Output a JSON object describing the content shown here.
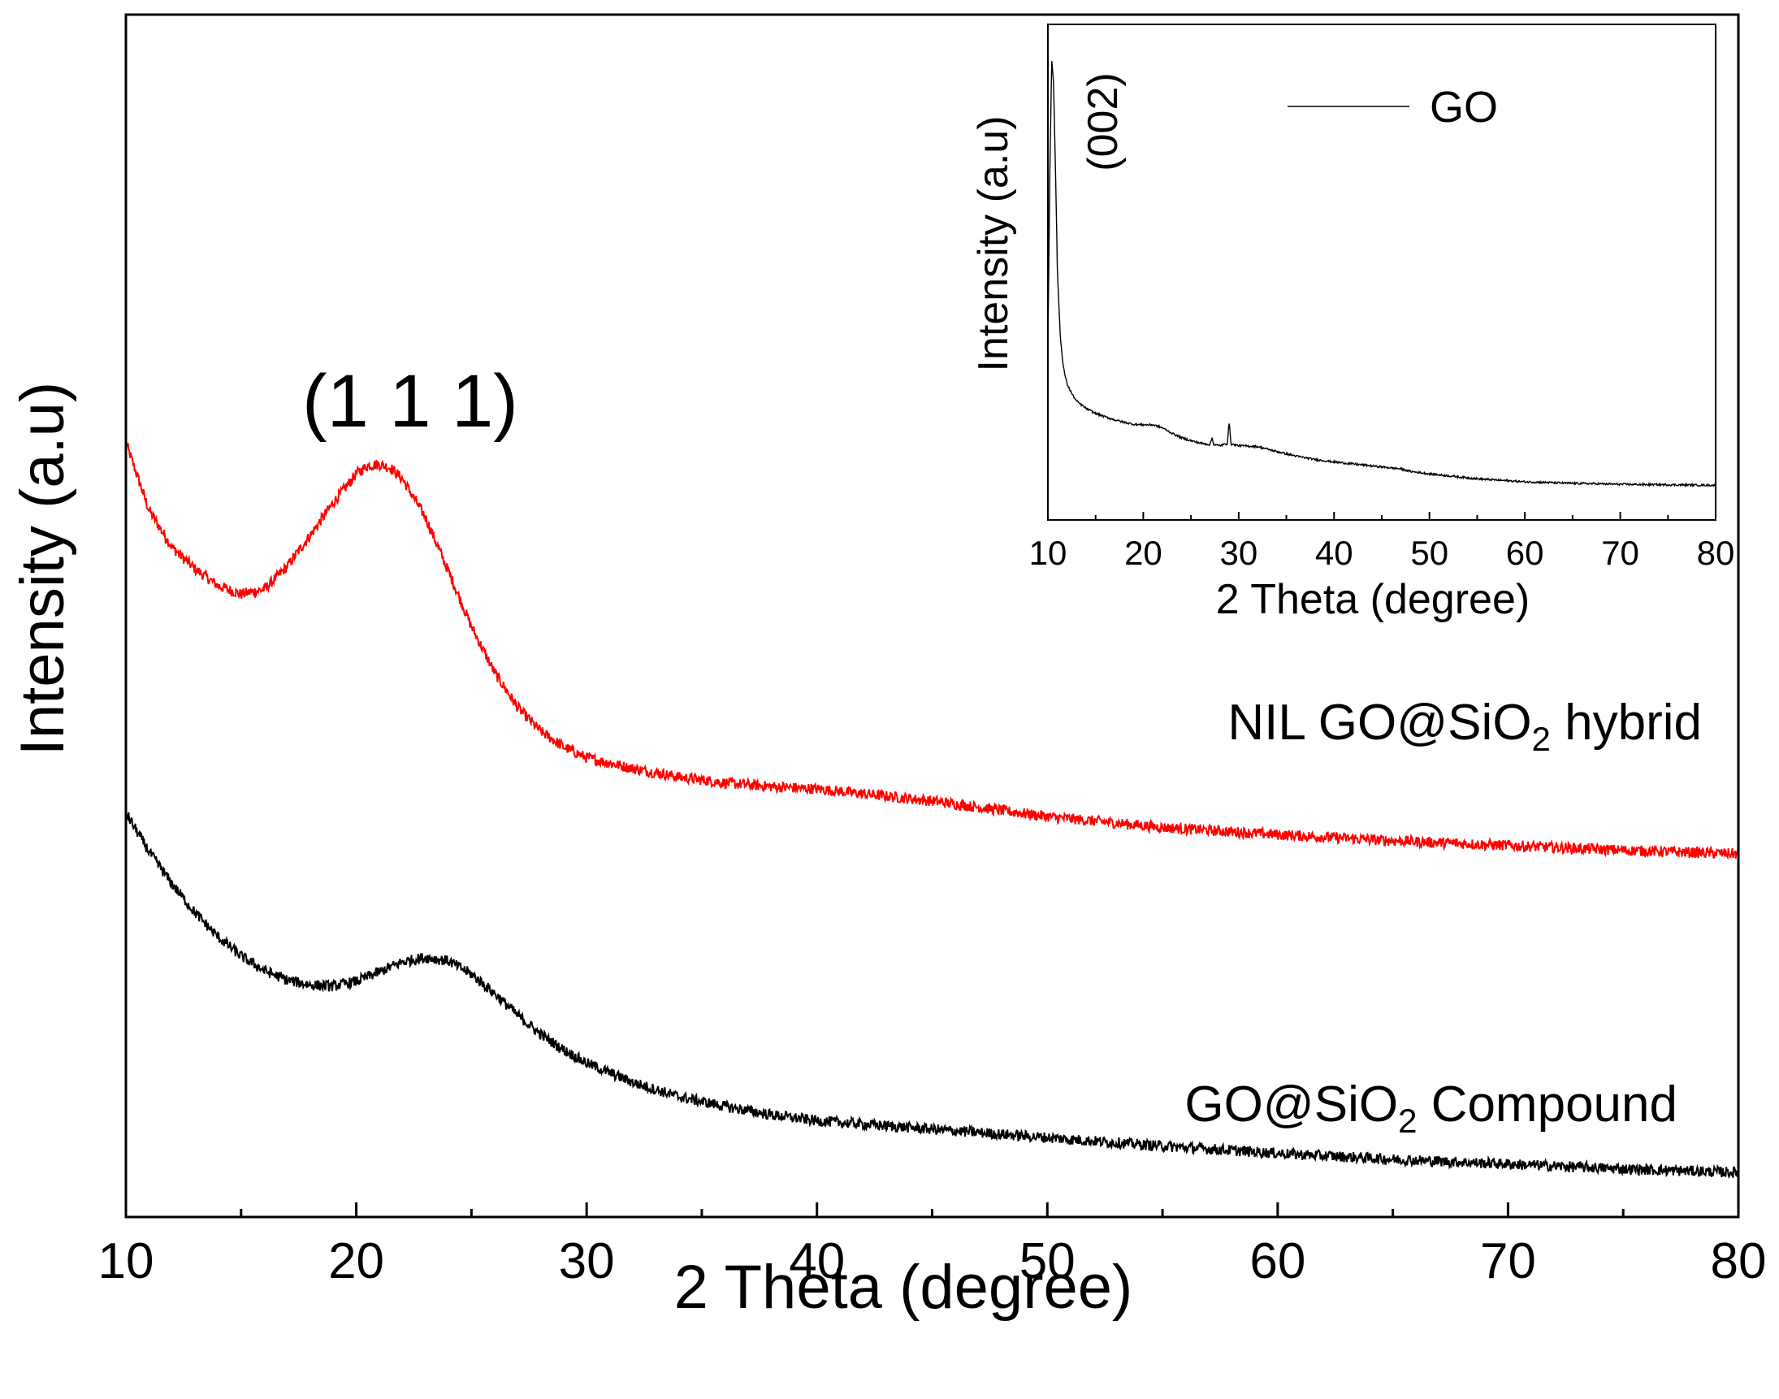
{
  "chart_data": [
    {
      "type": "line",
      "title": "",
      "xlabel": "2 Theta (degree)",
      "ylabel": "Intensity (a.u)",
      "xlim": [
        10,
        80
      ],
      "ylim": [
        0,
        100
      ],
      "y_tick_labels": false,
      "x_ticks": [
        10,
        20,
        30,
        40,
        50,
        60,
        70,
        80
      ],
      "peak_annotation": "(1 1 1)",
      "series": [
        {
          "name": "NIL GO@SiO2 hybrid",
          "label_main": "NIL GO@SiO",
          "label_sub": "2",
          "label_rest": " hybrid",
          "color": "#ff0000",
          "x": [
            10,
            11,
            12,
            13,
            14,
            15,
            16,
            17,
            18,
            19,
            20,
            20.5,
            21,
            21.5,
            22,
            23,
            24,
            25,
            26,
            27,
            28,
            29,
            30,
            32,
            34,
            36,
            38,
            40,
            42,
            45,
            50,
            55,
            60,
            65,
            70,
            75,
            80
          ],
          "y": [
            64.4,
            58.8,
            55.7,
            53.9,
            52.5,
            51.8,
            52.2,
            54.1,
            56.7,
            59.4,
            61.8,
            62.5,
            62.6,
            62.3,
            61.4,
            58.2,
            53.7,
            49.1,
            45.3,
            42.4,
            40.4,
            39.1,
            38.2,
            37.3,
            36.6,
            36.1,
            35.8,
            35.6,
            35.2,
            34.6,
            33.3,
            32.4,
            31.8,
            31.3,
            30.9,
            30.5,
            30.2
          ]
        },
        {
          "name": "GO@SiO2 Compound",
          "label_main": "GO@SiO",
          "label_sub": "2",
          "label_rest": " Compound",
          "color": "#000000",
          "x": [
            10,
            11,
            12,
            13,
            14,
            15,
            16,
            17,
            18,
            19,
            20,
            21,
            22,
            23,
            24,
            25,
            26,
            27,
            28,
            29,
            30,
            32,
            34,
            36,
            38,
            40,
            45,
            50,
            55,
            60,
            65,
            70,
            75,
            80
          ],
          "y": [
            33.6,
            30.4,
            27.7,
            25.3,
            23.3,
            21.7,
            20.5,
            19.7,
            19.3,
            19.2,
            19.6,
            20.4,
            21.2,
            21.6,
            21.3,
            20.2,
            18.6,
            16.8,
            15.2,
            13.9,
            12.8,
            11.2,
            10.0,
            9.2,
            8.5,
            8.0,
            7.3,
            6.6,
            5.9,
            5.3,
            4.8,
            4.4,
            4.0,
            3.7
          ]
        }
      ]
    },
    {
      "type": "line",
      "title": "",
      "xlabel": "2 Theta (degree)",
      "ylabel": "Intensity (a.u)",
      "xlim": [
        10,
        80
      ],
      "ylim": [
        0,
        100
      ],
      "y_tick_labels": false,
      "x_ticks": [
        10,
        20,
        30,
        40,
        50,
        60,
        70,
        80
      ],
      "peak_annotation": "(002)",
      "legend_placement": "top-right",
      "series": [
        {
          "name": "GO",
          "color": "#000000",
          "x": [
            10,
            10.2,
            10.4,
            10.6,
            10.8,
            11,
            11.3,
            11.6,
            12,
            12.5,
            13,
            14,
            15,
            16,
            17,
            18,
            19,
            20,
            21,
            22,
            23,
            24,
            25,
            26,
            27,
            27.2,
            27.4,
            28,
            28.8,
            29,
            29.2,
            30,
            32,
            34,
            36,
            38,
            40,
            42,
            45,
            47,
            48,
            50,
            55,
            60,
            65,
            70,
            75,
            80
          ],
          "y": [
            35,
            70,
            93,
            88,
            70,
            50,
            37,
            31,
            27.5,
            25.5,
            24,
            22.5,
            21.5,
            20.8,
            20.2,
            19.7,
            19.3,
            19.2,
            19.2,
            18.6,
            17.5,
            16.6,
            16.0,
            15.5,
            15.2,
            16.6,
            15.2,
            15.0,
            15.4,
            19.8,
            15.3,
            15.0,
            14.8,
            13.8,
            12.9,
            12.2,
            11.7,
            11.3,
            10.7,
            10.3,
            9.8,
            9.3,
            8.3,
            7.7,
            7.4,
            7.2,
            7.1,
            7.0
          ]
        }
      ]
    }
  ]
}
